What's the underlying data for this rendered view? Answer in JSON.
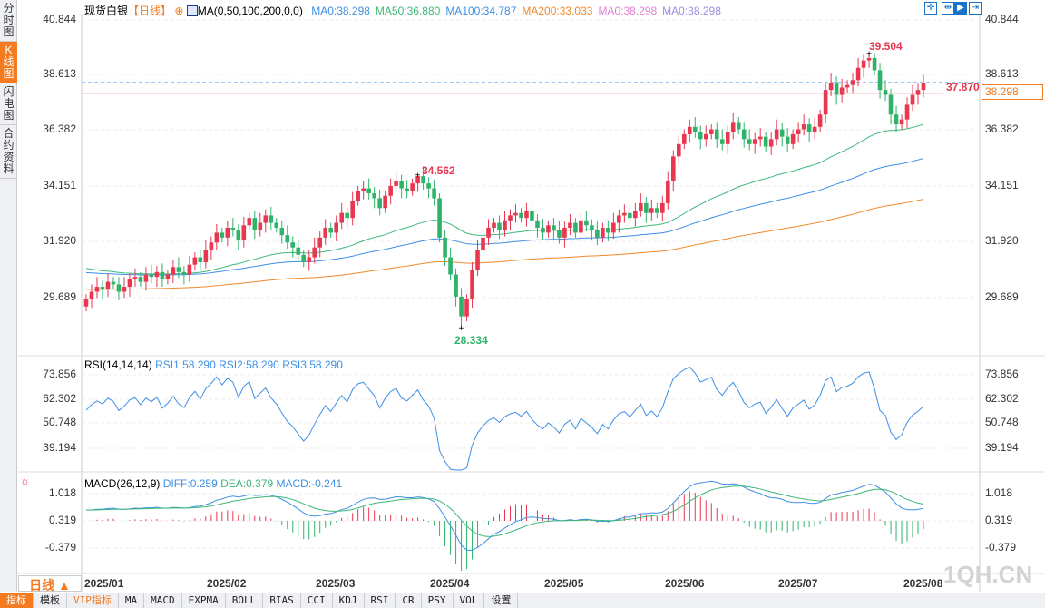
{
  "sidebar": {
    "tabs": [
      {
        "label": "分时图"
      },
      {
        "label": "K线图",
        "active": true
      },
      {
        "label": "闪电图"
      },
      {
        "label": "合约资料"
      }
    ]
  },
  "header": {
    "title": "现货白银",
    "period": "【日线】",
    "ma_label": "MA(0,50,100,200,0,0)",
    "ma_values": [
      {
        "text": "MA0:38.298",
        "color": "#3d8fe6"
      },
      {
        "text": "MA50:36.880",
        "color": "#3cb878"
      },
      {
        "text": "MA100:34.787",
        "color": "#3d8fe6"
      },
      {
        "text": "MA200:33.033",
        "color": "#f08a2c"
      },
      {
        "text": "MA0:38.298",
        "color": "#e07fd6"
      },
      {
        "text": "MA0:38.298",
        "color": "#9b8fe6"
      }
    ]
  },
  "toolbar_icons": [
    "crosshair-icon",
    "fit-range-icon",
    "play-icon",
    "scroll-right-icon"
  ],
  "price_axis": [
    "40.844",
    "38.613",
    "36.382",
    "34.151",
    "31.920",
    "29.689"
  ],
  "price_labels": {
    "high": "39.504",
    "mid_high": "34.562",
    "low": "28.334",
    "last_line": "37.870",
    "current": "38.298"
  },
  "rsi": {
    "label": "RSI(14,14,14)",
    "values": [
      "RSI1:58.290",
      "RSI2:58.290",
      "RSI3:58.290"
    ],
    "axis": [
      "73.856",
      "62.302",
      "50.748",
      "39.194"
    ]
  },
  "macd": {
    "label": "MACD(26,12,9)",
    "values": [
      {
        "text": "DIFF:0.259",
        "color": "#3d8fe6"
      },
      {
        "text": "DEA:0.379",
        "color": "#3cb878"
      },
      {
        "text": "MACD:-0.241",
        "color": "#3d8fe6"
      }
    ],
    "axis": [
      "1.018",
      "0.319",
      "-0.379"
    ]
  },
  "period_button": "日线 ▲",
  "months": [
    "2025/01",
    "2025/02",
    "2025/03",
    "2025/04",
    "2025/05",
    "2025/06",
    "2025/07",
    "2025/08"
  ],
  "watermark": "1QH.CN",
  "bottom_tabs": [
    "指标",
    "模板",
    "VIP指标",
    "MA",
    "MACD",
    "EXPMA",
    "BOLL",
    "BIAS",
    "CCI",
    "KDJ",
    "RSI",
    "CR",
    "PSY",
    "VOL",
    "设置"
  ],
  "colors": {
    "up": "#e8374f",
    "down": "#2fb36a",
    "accent": "#f47b20"
  },
  "chart_data": {
    "type": "candlestick",
    "ylim": [
      28.0,
      41.2
    ],
    "ma_start": {
      "ma50": 30.8,
      "ma100": 30.6,
      "ma200": 29.9
    },
    "closes": [
      29.5,
      29.8,
      30.0,
      29.9,
      30.2,
      30.1,
      29.8,
      30.0,
      30.3,
      30.4,
      30.2,
      30.5,
      30.4,
      30.6,
      30.3,
      30.5,
      30.8,
      30.6,
      30.5,
      30.9,
      31.2,
      31.0,
      31.5,
      31.8,
      32.2,
      32.0,
      32.4,
      32.3,
      31.9,
      32.5,
      32.8,
      32.3,
      32.6,
      32.9,
      32.6,
      32.4,
      32.1,
      31.8,
      31.6,
      31.3,
      31.0,
      31.2,
      31.6,
      32.0,
      32.4,
      32.2,
      32.6,
      33.0,
      32.8,
      33.5,
      33.9,
      34.0,
      33.8,
      33.6,
      33.2,
      33.7,
      34.1,
      34.3,
      34.0,
      33.9,
      34.2,
      34.5,
      34.2,
      34.0,
      33.6,
      32.0,
      31.2,
      30.5,
      29.6,
      28.8,
      29.5,
      30.7,
      31.5,
      32.0,
      32.4,
      32.6,
      32.3,
      32.7,
      32.9,
      33.0,
      32.8,
      33.1,
      32.7,
      32.4,
      32.2,
      32.5,
      32.3,
      32.0,
      32.4,
      32.6,
      32.2,
      32.7,
      32.5,
      32.3,
      32.0,
      32.4,
      32.2,
      32.6,
      32.9,
      33.0,
      32.8,
      33.1,
      33.4,
      33.0,
      33.2,
      33.0,
      33.4,
      34.3,
      35.3,
      35.8,
      36.2,
      36.5,
      36.3,
      36.0,
      36.2,
      36.4,
      36.0,
      35.8,
      36.3,
      36.7,
      36.4,
      36.0,
      35.8,
      36.0,
      36.1,
      35.7,
      36.0,
      36.4,
      36.1,
      35.8,
      36.2,
      36.4,
      36.6,
      36.3,
      36.5,
      37.0,
      38.0,
      38.3,
      37.8,
      38.1,
      38.2,
      38.4,
      38.9,
      39.2,
      39.3,
      38.8,
      38.0,
      37.8,
      37.0,
      36.6,
      36.8,
      37.4,
      37.8,
      38.0,
      38.3
    ]
  }
}
